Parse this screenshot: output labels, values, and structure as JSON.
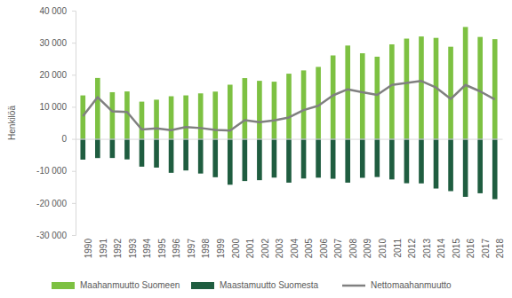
{
  "chart_data": {
    "type": "bar",
    "stacked": true,
    "grid": false,
    "legend": "bottom",
    "y_label": "Henkilöä",
    "categories": [
      "1990",
      "1991",
      "1992",
      "1993",
      "1994",
      "1995",
      "1996",
      "1997",
      "1998",
      "1999",
      "2000",
      "2001",
      "2002",
      "2003",
      "2004",
      "2005",
      "2006",
      "2007",
      "2008",
      "2009",
      "2010",
      "2011",
      "2012",
      "2013",
      "2014",
      "2015",
      "2016",
      "2017",
      "2018"
    ],
    "series": [
      {
        "name": "Maahanmuutto Suomeen",
        "type": "bar",
        "color": "#7dc142",
        "values": [
          13558,
          19001,
          14554,
          14795,
          11611,
          12222,
          13294,
          13564,
          14192,
          14744,
          16895,
          18955,
          18113,
          17838,
          20333,
          21355,
          22451,
          26029,
          29114,
          26699,
          25636,
          29481,
          31278,
          31941,
          31507,
          28746,
          34905,
          31797,
          31106
        ]
      },
      {
        "name": "Maastamuutto Suomesta",
        "type": "bar",
        "color": "#1f5d40",
        "values": [
          -6477,
          -5984,
          -5967,
          -6405,
          -8672,
          -8957,
          -10587,
          -9854,
          -10817,
          -11966,
          -14311,
          -13153,
          -12891,
          -12083,
          -13656,
          -12369,
          -12107,
          -12443,
          -13657,
          -12151,
          -11905,
          -12660,
          -13845,
          -13893,
          -15486,
          -16305,
          -18082,
          -16973,
          -18814
        ]
      },
      {
        "name": "Nettomaahanmuutto",
        "type": "line",
        "color": "#808080",
        "values": [
          7081,
          13017,
          8587,
          8390,
          2939,
          3265,
          2707,
          3710,
          3375,
          2778,
          2584,
          5802,
          5222,
          5755,
          6677,
          8986,
          10344,
          13586,
          15457,
          14548,
          13731,
          16821,
          17433,
          18048,
          16021,
          12441,
          16823,
          14824,
          12292
        ]
      }
    ],
    "ylim": [
      -30000,
      40000
    ],
    "yticks": [
      {
        "value": 40000,
        "label": "40 000"
      },
      {
        "value": 30000,
        "label": "30 000"
      },
      {
        "value": 20000,
        "label": "20 000"
      },
      {
        "value": 10000,
        "label": "10 000"
      },
      0,
      {
        "value": -10000,
        "label": "-10 000"
      },
      {
        "value": -20000,
        "label": "-20 000"
      },
      {
        "value": -30000,
        "label": "-30 000"
      }
    ]
  }
}
